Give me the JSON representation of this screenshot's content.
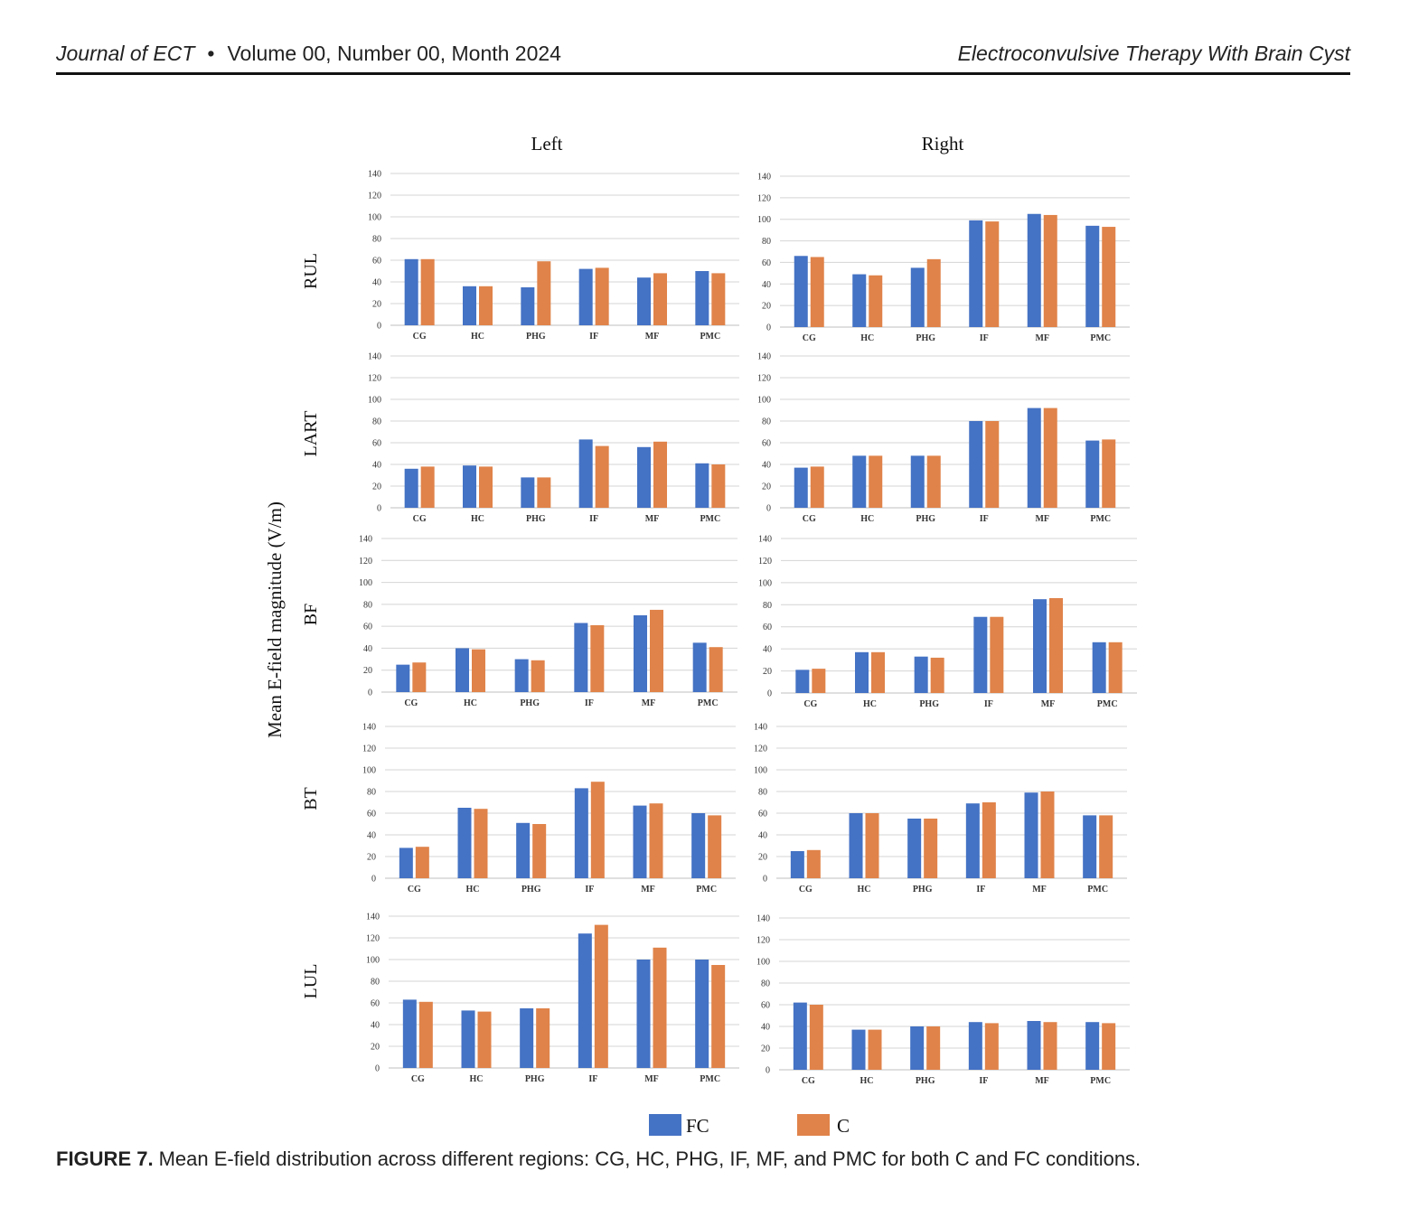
{
  "header": {
    "journal": "Journal of ECT",
    "issue": "Volume 00, Number 00, Month 2024",
    "running_title": "Electroconvulsive Therapy With Brain Cyst"
  },
  "figure": {
    "column_titles": [
      "Left",
      "Right"
    ],
    "ylabel": "Mean E-field magnitude (V/m)",
    "legend": [
      {
        "name": "FC",
        "color": "#4472C4"
      },
      {
        "name": "C",
        "color": "#E0834A"
      }
    ]
  },
  "caption": {
    "label": "FIGURE 7.",
    "text": "Mean E-field distribution across different regions: CG, HC, PHG, IF, MF, and PMC for both C and FC conditions."
  },
  "chart_data": [
    {
      "type": "bar",
      "row": "RUL",
      "column": "Left",
      "categories": [
        "CG",
        "HC",
        "PHG",
        "IF",
        "MF",
        "PMC"
      ],
      "ylim": [
        0,
        140
      ],
      "yticks": [
        0,
        20,
        40,
        60,
        80,
        100,
        120,
        140
      ],
      "grid": true,
      "series": [
        {
          "name": "FC",
          "values": [
            61,
            36,
            35,
            52,
            44,
            50
          ]
        },
        {
          "name": "C",
          "values": [
            61,
            36,
            59,
            53,
            48,
            48
          ]
        }
      ]
    },
    {
      "type": "bar",
      "row": "RUL",
      "column": "Right",
      "categories": [
        "CG",
        "HC",
        "PHG",
        "IF",
        "MF",
        "PMC"
      ],
      "ylim": [
        0,
        140
      ],
      "yticks": [
        0,
        20,
        40,
        60,
        80,
        100,
        120,
        140
      ],
      "grid": true,
      "series": [
        {
          "name": "FC",
          "values": [
            66,
            49,
            55,
            99,
            105,
            94
          ]
        },
        {
          "name": "C",
          "values": [
            65,
            48,
            63,
            98,
            104,
            93
          ]
        }
      ]
    },
    {
      "type": "bar",
      "row": "LART",
      "column": "Left",
      "categories": [
        "CG",
        "HC",
        "PHG",
        "IF",
        "MF",
        "PMC"
      ],
      "ylim": [
        0,
        140
      ],
      "yticks": [
        0,
        20,
        40,
        60,
        80,
        100,
        120,
        140
      ],
      "grid": true,
      "series": [
        {
          "name": "FC",
          "values": [
            36,
            39,
            28,
            63,
            56,
            41
          ]
        },
        {
          "name": "C",
          "values": [
            38,
            38,
            28,
            57,
            61,
            40
          ]
        }
      ]
    },
    {
      "type": "bar",
      "row": "LART",
      "column": "Right",
      "categories": [
        "CG",
        "HC",
        "PHG",
        "IF",
        "MF",
        "PMC"
      ],
      "ylim": [
        0,
        140
      ],
      "yticks": [
        0,
        20,
        40,
        60,
        80,
        100,
        120,
        140
      ],
      "grid": true,
      "series": [
        {
          "name": "FC",
          "values": [
            37,
            48,
            48,
            80,
            92,
            62
          ]
        },
        {
          "name": "C",
          "values": [
            38,
            48,
            48,
            80,
            92,
            63
          ]
        }
      ]
    },
    {
      "type": "bar",
      "row": "BF",
      "column": "Left",
      "categories": [
        "CG",
        "HC",
        "PHG",
        "IF",
        "MF",
        "PMC"
      ],
      "ylim": [
        0,
        140
      ],
      "yticks": [
        0,
        20,
        40,
        60,
        80,
        100,
        120,
        140
      ],
      "grid": true,
      "series": [
        {
          "name": "FC",
          "values": [
            25,
            40,
            30,
            63,
            70,
            45
          ]
        },
        {
          "name": "C",
          "values": [
            27,
            39,
            29,
            61,
            75,
            41
          ]
        }
      ]
    },
    {
      "type": "bar",
      "row": "BF",
      "column": "Right",
      "categories": [
        "CG",
        "HC",
        "PHG",
        "IF",
        "MF",
        "PMC"
      ],
      "ylim": [
        0,
        140
      ],
      "yticks": [
        0,
        20,
        40,
        60,
        80,
        100,
        120,
        140
      ],
      "grid": true,
      "series": [
        {
          "name": "FC",
          "values": [
            21,
            37,
            33,
            69,
            85,
            46
          ]
        },
        {
          "name": "C",
          "values": [
            22,
            37,
            32,
            69,
            86,
            46
          ]
        }
      ]
    },
    {
      "type": "bar",
      "row": "BT",
      "column": "Left",
      "categories": [
        "CG",
        "HC",
        "PHG",
        "IF",
        "MF",
        "PMC"
      ],
      "ylim": [
        0,
        140
      ],
      "yticks": [
        0,
        20,
        40,
        60,
        80,
        100,
        120,
        140
      ],
      "grid": true,
      "series": [
        {
          "name": "FC",
          "values": [
            28,
            65,
            51,
            83,
            67,
            60
          ]
        },
        {
          "name": "C",
          "values": [
            29,
            64,
            50,
            89,
            69,
            58
          ]
        }
      ]
    },
    {
      "type": "bar",
      "row": "BT",
      "column": "Right",
      "categories": [
        "CG",
        "HC",
        "PHG",
        "IF",
        "MF",
        "PMC"
      ],
      "ylim": [
        0,
        140
      ],
      "yticks": [
        0,
        20,
        40,
        60,
        80,
        100,
        120,
        140
      ],
      "grid": true,
      "series": [
        {
          "name": "FC",
          "values": [
            25,
            60,
            55,
            69,
            79,
            58
          ]
        },
        {
          "name": "C",
          "values": [
            26,
            60,
            55,
            70,
            80,
            58
          ]
        }
      ]
    },
    {
      "type": "bar",
      "row": "LUL",
      "column": "Left",
      "categories": [
        "CG",
        "HC",
        "PHG",
        "IF",
        "MF",
        "PMC"
      ],
      "ylim": [
        0,
        140
      ],
      "yticks": [
        0,
        20,
        40,
        60,
        80,
        100,
        120,
        140
      ],
      "grid": true,
      "series": [
        {
          "name": "FC",
          "values": [
            63,
            53,
            55,
            124,
            100,
            100
          ]
        },
        {
          "name": "C",
          "values": [
            61,
            52,
            55,
            132,
            111,
            95
          ]
        }
      ]
    },
    {
      "type": "bar",
      "row": "LUL",
      "column": "Right",
      "categories": [
        "CG",
        "HC",
        "PHG",
        "IF",
        "MF",
        "PMC"
      ],
      "ylim": [
        0,
        140
      ],
      "yticks": [
        0,
        20,
        40,
        60,
        80,
        100,
        120,
        140
      ],
      "grid": true,
      "series": [
        {
          "name": "FC",
          "values": [
            62,
            37,
            40,
            44,
            45,
            44
          ]
        },
        {
          "name": "C",
          "values": [
            60,
            37,
            40,
            43,
            44,
            43
          ]
        }
      ]
    }
  ]
}
